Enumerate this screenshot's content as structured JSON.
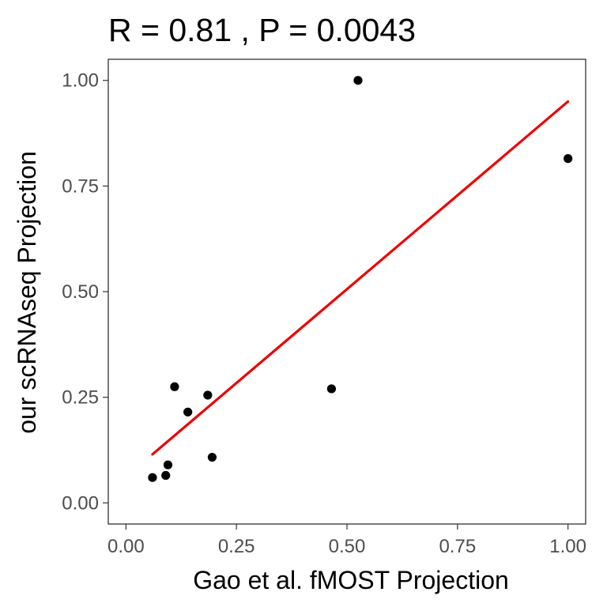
{
  "chart_data": {
    "type": "scatter",
    "title": "R = 0.81 , P = 0.0043",
    "xlabel": "Gao et al. fMOST Projection",
    "ylabel": "our scRNAseq Projection",
    "xlim": [
      -0.04,
      1.04
    ],
    "ylim": [
      -0.05,
      1.05
    ],
    "x_ticks": [
      0.0,
      0.25,
      0.5,
      0.75,
      1.0
    ],
    "x_tick_labels": [
      "0.00",
      "0.25",
      "0.50",
      "0.75",
      "1.00"
    ],
    "y_ticks": [
      0.0,
      0.25,
      0.5,
      0.75,
      1.0
    ],
    "y_tick_labels": [
      "0.00",
      "0.25",
      "0.50",
      "0.75",
      "1.00"
    ],
    "grid": false,
    "point_color": "#000000",
    "fit_line_color": "#ee0000",
    "points": [
      {
        "x": 0.06,
        "y": 0.06
      },
      {
        "x": 0.09,
        "y": 0.065
      },
      {
        "x": 0.095,
        "y": 0.09
      },
      {
        "x": 0.11,
        "y": 0.275
      },
      {
        "x": 0.14,
        "y": 0.215
      },
      {
        "x": 0.185,
        "y": 0.255
      },
      {
        "x": 0.195,
        "y": 0.108
      },
      {
        "x": 0.465,
        "y": 0.27
      },
      {
        "x": 0.525,
        "y": 1.0
      },
      {
        "x": 1.0,
        "y": 0.815
      }
    ],
    "fit_line": {
      "x": [
        0.06,
        1.0
      ],
      "y": [
        0.115,
        0.95
      ]
    }
  }
}
